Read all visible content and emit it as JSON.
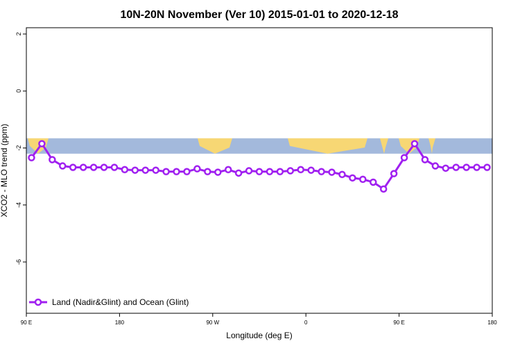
{
  "chart_data": {
    "type": "line",
    "title": "10N-20N November (Ver 10)   2015-01-01 to 2020-12-18",
    "x_label": "Longitude (deg E)",
    "y_label": "XCO2 - MLO trend (ppm)",
    "x": [
      95,
      105,
      115,
      125,
      135,
      145,
      155,
      165,
      175,
      185,
      195,
      205,
      215,
      225,
      235,
      245,
      255,
      265,
      275,
      285,
      295,
      305,
      315,
      325,
      335,
      345,
      355,
      365,
      375,
      385,
      395,
      405,
      415,
      425,
      435,
      445,
      455,
      465,
      475,
      485,
      495,
      505,
      515,
      525,
      535
    ],
    "series": [
      {
        "name": "Land (Nadir&Glint) and Ocean (Glint)",
        "color": "#a020f0",
        "values": [
          -2.34,
          -1.85,
          -2.41,
          -2.63,
          -2.68,
          -2.68,
          -2.68,
          -2.68,
          -2.68,
          -2.76,
          -2.78,
          -2.78,
          -2.78,
          -2.83,
          -2.83,
          -2.83,
          -2.73,
          -2.83,
          -2.85,
          -2.76,
          -2.88,
          -2.8,
          -2.83,
          -2.83,
          -2.83,
          -2.8,
          -2.76,
          -2.78,
          -2.83,
          -2.85,
          -2.93,
          -3.05,
          -3.1,
          -3.2,
          -3.44,
          -2.9,
          -2.34,
          -1.85,
          -2.41,
          -2.63,
          -2.71,
          -2.68,
          -2.68,
          -2.68,
          -2.68
        ]
      }
    ],
    "xlim": [
      90,
      540
    ],
    "xticks": [
      {
        "value": 90,
        "label": "90 E"
      },
      180,
      {
        "value": 270,
        "label": "90 W"
      },
      {
        "value": 360,
        "label": "0"
      },
      {
        "value": 450,
        "label": "90 E"
      },
      {
        "value": 540,
        "label": "180"
      }
    ],
    "ylim": [
      -7.8,
      2.22
    ],
    "yticks": [
      -6,
      -4,
      -2,
      0,
      2
    ],
    "map_band": [
      -1.66,
      -2.2
    ],
    "legend": "bottom-left"
  }
}
